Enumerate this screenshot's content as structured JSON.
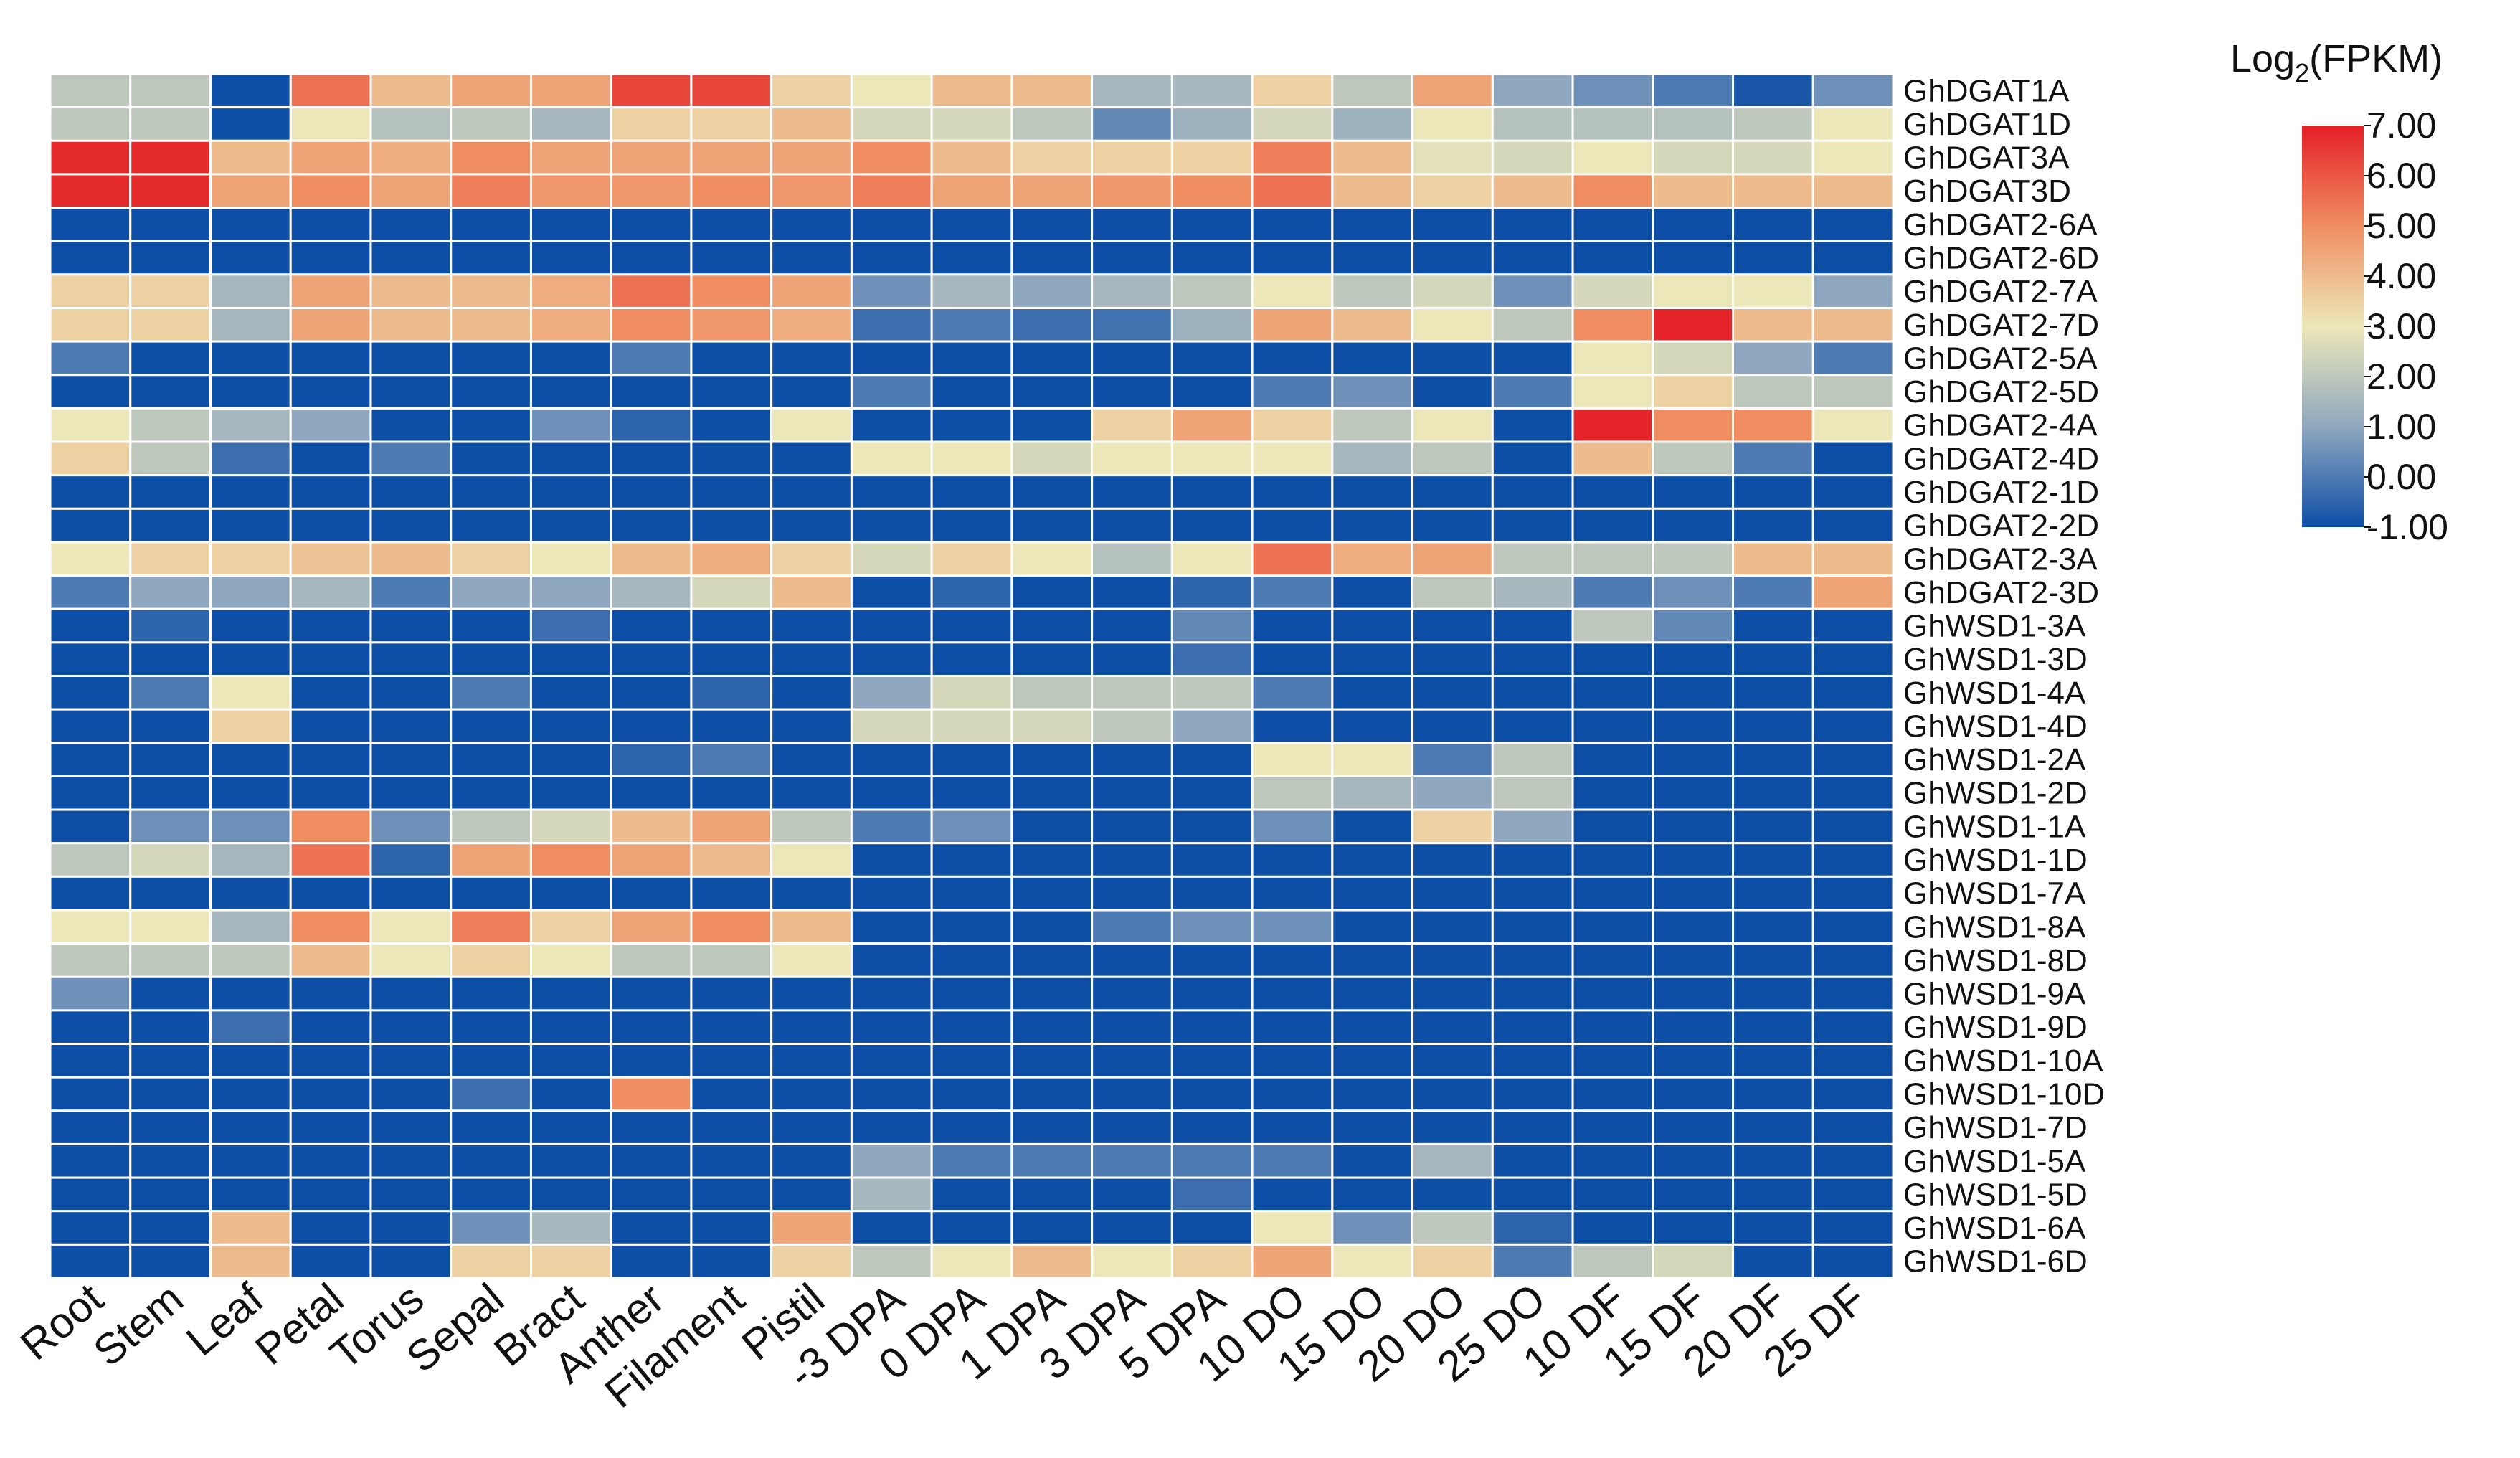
{
  "chart_data": {
    "type": "heatmap",
    "title": "",
    "legend_title": {
      "prefix": "Log",
      "subscript": "2",
      "suffix": "(FPKM)"
    },
    "colorscale": {
      "min": -1.0,
      "max": 7.0,
      "stops": [
        {
          "value": -1.0,
          "color": "#0d4ea6"
        },
        {
          "value": 1.0,
          "color": "#8fa7bf"
        },
        {
          "value": 3.0,
          "color": "#ece7b8"
        },
        {
          "value": 5.0,
          "color": "#f08e62"
        },
        {
          "value": 7.0,
          "color": "#e41f26"
        }
      ],
      "tick_labels": [
        "7.00",
        "6.00",
        "5.00",
        "4.00",
        "3.00",
        "2.00",
        "1.00",
        "0.00",
        "-1.00"
      ],
      "tick_values": [
        7,
        6,
        5,
        4,
        3,
        2,
        1,
        0,
        -1
      ]
    },
    "columns": [
      "Root",
      "Stem",
      "Leaf",
      "Petal",
      "Torus",
      "Sepal",
      "Bract",
      "Anther",
      "Filament",
      "Pistil",
      "-3 DPA",
      "0 DPA",
      "1 DPA",
      "3 DPA",
      "5 DPA",
      "10 DO",
      "15 DO",
      "20 DO",
      "25 DO",
      "10 DF",
      "15 DF",
      "20 DF",
      "25 DF"
    ],
    "rows": [
      "GhDGAT1A",
      "GhDGAT1D",
      "GhDGAT3A",
      "GhDGAT3D",
      "GhDGAT2-6A",
      "GhDGAT2-6D",
      "GhDGAT2-7A",
      "GhDGAT2-7D",
      "GhDGAT2-5A",
      "GhDGAT2-5D",
      "GhDGAT2-4A",
      "GhDGAT2-4D",
      "GhDGAT2-1D",
      "GhDGAT2-2D",
      "GhDGAT2-3A",
      "GhDGAT2-3D",
      "GhWSD1-3A",
      "GhWSD1-3D",
      "GhWSD1-4A",
      "GhWSD1-4D",
      "GhWSD1-2A",
      "GhWSD1-2D",
      "GhWSD1-1A",
      "GhWSD1-1D",
      "GhWSD1-7A",
      "GhWSD1-8A",
      "GhWSD1-8D",
      "GhWSD1-9A",
      "GhWSD1-9D",
      "GhWSD1-10A",
      "GhWSD1-10D",
      "GhWSD1-7D",
      "GhWSD1-5A",
      "GhWSD1-5D",
      "GhWSD1-6A",
      "GhWSD1-6D"
    ],
    "values": [
      [
        2.0,
        2.0,
        -1.0,
        5.5,
        4.0,
        4.5,
        4.5,
        6.3,
        6.3,
        3.5,
        3.0,
        4.0,
        4.0,
        1.5,
        1.5,
        3.5,
        2.0,
        4.5,
        1.0,
        0.5,
        0.0,
        -0.8,
        0.5
      ],
      [
        2.0,
        2.0,
        -1.0,
        3.0,
        1.8,
        2.0,
        1.5,
        3.5,
        3.5,
        4.0,
        2.5,
        2.5,
        2.0,
        0.3,
        1.3,
        2.5,
        1.3,
        3.0,
        1.8,
        1.8,
        1.8,
        2.0,
        3.0
      ],
      [
        6.8,
        6.8,
        4.0,
        4.5,
        4.3,
        5.0,
        4.5,
        4.5,
        4.5,
        4.5,
        5.0,
        4.0,
        3.5,
        3.5,
        3.5,
        5.3,
        4.0,
        2.8,
        2.5,
        3.0,
        2.5,
        2.5,
        3.0
      ],
      [
        6.8,
        6.8,
        4.5,
        5.0,
        4.5,
        5.3,
        4.8,
        4.8,
        5.0,
        4.8,
        5.3,
        4.5,
        4.5,
        4.8,
        5.0,
        5.5,
        4.0,
        3.5,
        4.0,
        5.0,
        4.0,
        4.0,
        4.0
      ],
      [
        -1,
        -1,
        -1,
        -1,
        -1,
        -1,
        -1,
        -1,
        -1,
        -1,
        -1,
        -1,
        -1,
        -1,
        -1,
        -1,
        -1,
        -1,
        -1,
        -1,
        -1,
        -1,
        -1
      ],
      [
        -1,
        -1,
        -1,
        -1,
        -1,
        -1,
        -1,
        -1,
        -1,
        -1,
        -1,
        -1,
        -1,
        -1,
        -1,
        -1,
        -1,
        -1,
        -1,
        -1,
        -1,
        -1,
        -1
      ],
      [
        3.5,
        3.5,
        1.5,
        4.5,
        4.0,
        4.0,
        4.3,
        5.5,
        5.0,
        4.5,
        0.5,
        1.5,
        1.0,
        1.5,
        2.0,
        3.0,
        2.0,
        2.5,
        0.5,
        2.5,
        3.0,
        3.0,
        1.0
      ],
      [
        3.5,
        3.5,
        1.5,
        4.5,
        4.0,
        4.0,
        4.3,
        5.0,
        4.8,
        4.3,
        -0.3,
        0.0,
        -0.3,
        -0.2,
        1.3,
        4.5,
        4.0,
        3.0,
        2.0,
        5.0,
        6.9,
        4.0,
        4.0
      ],
      [
        0.0,
        -1,
        -1,
        -1,
        -1,
        -1,
        -1,
        0.0,
        -1,
        -1,
        -1,
        -1,
        -1,
        -1,
        -1,
        -1,
        -1,
        -1,
        -1,
        3.0,
        2.5,
        1.0,
        0.0
      ],
      [
        -1,
        -1,
        -1,
        -1,
        -1,
        -1,
        -1,
        -1,
        -1,
        -1,
        0.0,
        -1,
        -1,
        -1,
        -1,
        0.0,
        0.5,
        -1,
        0.0,
        3.0,
        3.5,
        2.0,
        2.0
      ],
      [
        3.0,
        2.0,
        1.5,
        1.0,
        -1,
        -1,
        0.5,
        -0.5,
        -1,
        3.0,
        -1,
        -1,
        -1,
        3.5,
        4.5,
        3.5,
        2.0,
        3.0,
        -1,
        6.9,
        5.0,
        5.0,
        3.0
      ],
      [
        3.5,
        2.0,
        -0.3,
        -1,
        0.0,
        -1,
        -1,
        -1,
        -1,
        -1,
        3.0,
        3.0,
        2.5,
        3.0,
        3.0,
        3.0,
        1.5,
        2.0,
        -1,
        4.0,
        2.0,
        0.0,
        -1
      ],
      [
        -1,
        -1,
        -1,
        -1,
        -1,
        -1,
        -1,
        -1,
        -1,
        -1,
        -1,
        -1,
        -1,
        -1,
        -1,
        -1,
        -1,
        -1,
        -1,
        -1,
        -1,
        -1,
        -1
      ],
      [
        -1,
        -1,
        -1,
        -1,
        -1,
        -1,
        -1,
        -1,
        -1,
        -1,
        -1,
        -1,
        -1,
        -1,
        -1,
        -1,
        -1,
        -1,
        -1,
        -1,
        -1,
        -1,
        -1
      ],
      [
        3.0,
        3.5,
        3.5,
        3.8,
        4.0,
        3.5,
        3.0,
        4.0,
        4.3,
        3.5,
        2.5,
        3.5,
        3.0,
        1.8,
        3.0,
        5.5,
        4.3,
        4.5,
        2.0,
        2.0,
        2.0,
        4.0,
        4.0
      ],
      [
        0.0,
        1.0,
        1.0,
        1.5,
        0.0,
        1.0,
        1.0,
        1.5,
        2.5,
        4.0,
        -1,
        -0.5,
        -1,
        -1,
        -0.5,
        0.0,
        -1,
        2.0,
        1.5,
        0.0,
        0.5,
        0.0,
        4.5
      ],
      [
        -1,
        -0.5,
        -1,
        -1,
        -1,
        -1,
        -0.3,
        -1,
        -1,
        -1,
        -1,
        -1,
        -1,
        -1,
        0.3,
        -1,
        -1,
        -1,
        -1,
        2.0,
        0.3,
        -1,
        -1
      ],
      [
        -1,
        -1,
        -1,
        -1,
        -1,
        -1,
        -1,
        -1,
        -1,
        -1,
        -1,
        -1,
        -1,
        -1,
        -0.3,
        -1,
        -1,
        -1,
        -1,
        -1,
        -1,
        -1,
        -1
      ],
      [
        -1,
        0.0,
        3.0,
        -1,
        -1,
        0.0,
        -1,
        -1,
        -0.5,
        -1,
        1.0,
        2.5,
        2.0,
        2.0,
        2.0,
        0.0,
        -1,
        -1,
        -1,
        -1,
        -1,
        -1,
        -1
      ],
      [
        -1,
        -1,
        3.5,
        -1,
        -1,
        -1,
        -1,
        -1,
        -1,
        -1,
        2.5,
        2.5,
        2.5,
        2.0,
        1.0,
        -1,
        -1,
        -1,
        -1,
        -1,
        -1,
        -1,
        -1
      ],
      [
        -1,
        -1,
        -1,
        -1,
        -1,
        -1,
        -1,
        -0.5,
        0.0,
        -1,
        -1,
        -1,
        -1,
        -1,
        -1,
        3.0,
        3.0,
        0.0,
        2.0,
        -1,
        -1,
        -1,
        -1
      ],
      [
        -1,
        -1,
        -1,
        -1,
        -1,
        -1,
        -1,
        -1,
        -1,
        -1,
        -1,
        -1,
        -1,
        -1,
        -1,
        2.0,
        1.5,
        1.0,
        2.0,
        -1,
        -1,
        -1,
        -1
      ],
      [
        -1,
        0.5,
        0.5,
        5.0,
        0.5,
        2.0,
        2.5,
        4.0,
        4.5,
        2.0,
        0.0,
        0.5,
        -1,
        -1,
        -1,
        0.5,
        -1,
        3.5,
        1.0,
        -1,
        -1,
        -1,
        -1
      ],
      [
        2.0,
        2.5,
        1.5,
        5.5,
        -0.5,
        4.5,
        5.0,
        4.5,
        4.0,
        3.0,
        -1,
        -1,
        -1,
        -1,
        -1,
        -1,
        -1,
        -1,
        -1,
        -1,
        -1,
        -1,
        -1
      ],
      [
        -1,
        -1,
        -1,
        -1,
        -1,
        -1,
        -1,
        -1,
        -1,
        -1,
        -1,
        -1,
        -1,
        -1,
        -1,
        -1,
        -1,
        -1,
        -1,
        -1,
        -1,
        -1,
        -1
      ],
      [
        3.0,
        3.0,
        1.5,
        5.0,
        3.0,
        5.3,
        3.5,
        4.5,
        5.0,
        4.0,
        -1,
        -1,
        -1,
        0.0,
        0.5,
        0.5,
        -1,
        -1,
        -1,
        -1,
        -1,
        -1,
        -1
      ],
      [
        2.0,
        2.0,
        2.0,
        4.0,
        3.0,
        3.5,
        3.0,
        2.0,
        2.0,
        3.0,
        -1,
        -1,
        -1,
        -1,
        -1,
        -1,
        -1,
        -1,
        -1,
        -1,
        -1,
        -1,
        -1
      ],
      [
        0.5,
        -1,
        -1,
        -1,
        -1,
        -1,
        -1,
        -1,
        -1,
        -1,
        -1,
        -1,
        -1,
        -1,
        -1,
        -1,
        -1,
        -1,
        -1,
        -1,
        -1,
        -1,
        -1
      ],
      [
        -1,
        -1,
        -0.3,
        -1,
        -1,
        -1,
        -1,
        -1,
        -1,
        -1,
        -1,
        -1,
        -1,
        -1,
        -1,
        -1,
        -1,
        -1,
        -1,
        -1,
        -1,
        -1,
        -1
      ],
      [
        -1,
        -1,
        -1,
        -1,
        -1,
        -1,
        -1,
        -1,
        -1,
        -1,
        -1,
        -1,
        -1,
        -1,
        -1,
        -1,
        -1,
        -1,
        -1,
        -1,
        -1,
        -1,
        -1
      ],
      [
        -1,
        -1,
        -1,
        -1,
        -1,
        -0.3,
        -1,
        5.0,
        -1,
        -1,
        -1,
        -1,
        -1,
        -1,
        -1,
        -1,
        -1,
        -1,
        -1,
        -1,
        -1,
        -1,
        -1
      ],
      [
        -1,
        -1,
        -1,
        -1,
        -1,
        -1,
        -1,
        -1,
        -1,
        -1,
        -1,
        -1,
        -1,
        -1,
        -1,
        -1,
        -1,
        -1,
        -1,
        -1,
        -1,
        -1,
        -1
      ],
      [
        -1,
        -1,
        -1,
        -1,
        -1,
        -1,
        -1,
        -1,
        -1,
        -1,
        1.0,
        0.0,
        0.0,
        0.0,
        0.0,
        0.0,
        -1,
        1.5,
        -1,
        -1,
        -1,
        -1,
        -1
      ],
      [
        -1,
        -1,
        -1,
        -1,
        -1,
        -1,
        -1,
        -1,
        -1,
        -1,
        1.5,
        -1,
        -1,
        -1,
        -0.3,
        -1,
        -1,
        -1,
        -1,
        -1,
        -1,
        -1,
        -1
      ],
      [
        -1,
        -1,
        4.0,
        -1,
        -1,
        0.5,
        1.5,
        -1,
        -1,
        4.5,
        -1,
        -1,
        -1,
        -1,
        -1,
        3.0,
        0.5,
        2.0,
        -0.5,
        -1,
        -1,
        -1,
        -1
      ],
      [
        -1,
        -1,
        4.0,
        -1,
        -1,
        3.5,
        3.5,
        -1,
        -1,
        3.5,
        2.0,
        3.0,
        4.0,
        3.0,
        3.5,
        4.5,
        3.0,
        3.5,
        0.0,
        2.0,
        2.5,
        -1,
        -1
      ]
    ]
  }
}
